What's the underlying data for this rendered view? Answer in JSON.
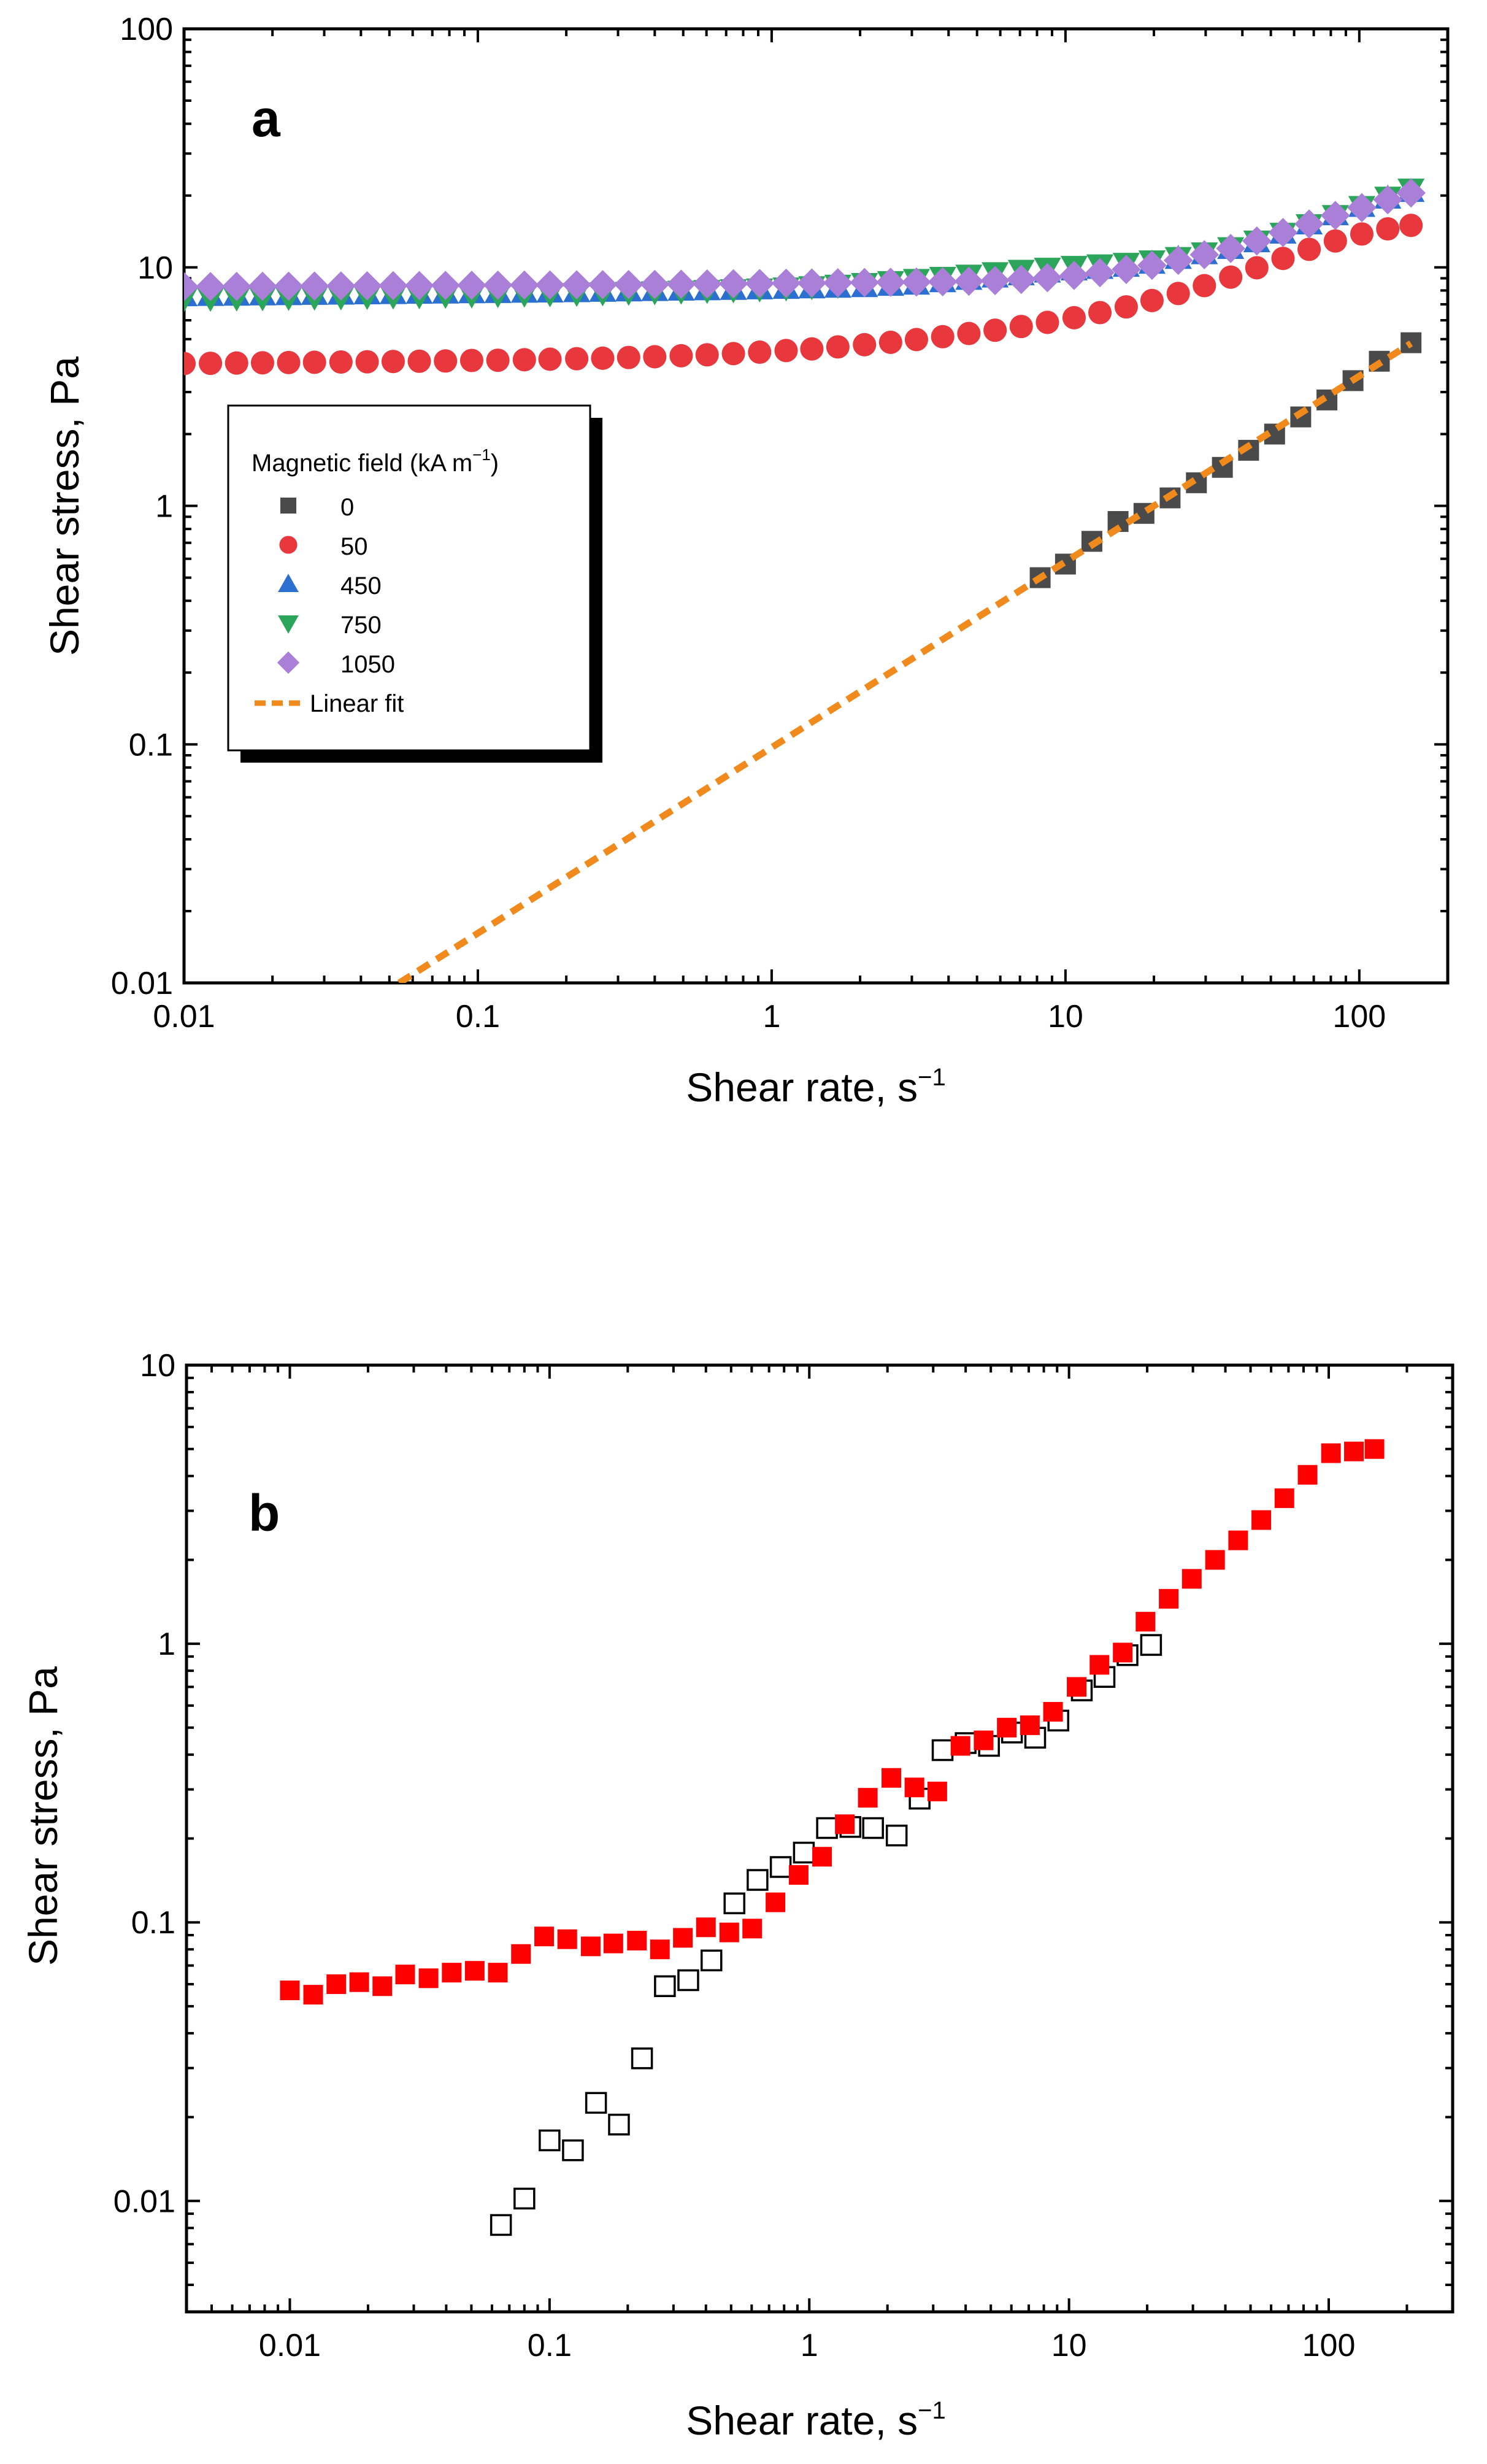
{
  "chart_data": [
    {
      "id": "a",
      "type": "scatter",
      "panel_label": "a",
      "xscale": "log",
      "yscale": "log",
      "xlim": [
        0.01,
        200
      ],
      "ylim": [
        0.01,
        100
      ],
      "xlabel": "Shear rate, s",
      "xlabel_sup": "−1",
      "ylabel": "Shear stress, Pa",
      "xticks": [
        0.01,
        0.1,
        1,
        10,
        100
      ],
      "xtick_labels": [
        "0.01",
        "0.1",
        "1",
        "10",
        "100"
      ],
      "yticks": [
        0.01,
        0.1,
        1,
        10,
        100
      ],
      "ytick_labels": [
        "0.01",
        "0.1",
        "1",
        "10",
        "100"
      ],
      "legend": {
        "title": "Magnetic field (kA m",
        "title_sup": "−1",
        "title_end": ")",
        "placement": "left-middle"
      },
      "series": [
        {
          "name": "0",
          "marker": "square",
          "color": "#4a4a4a",
          "x": [
            8.2,
            10,
            12.3,
            15.1,
            18.5,
            22.7,
            27.9,
            34.2,
            42,
            51.5,
            63.2,
            77.6,
            95.2,
            117,
            150
          ],
          "y": [
            0.5,
            0.57,
            0.71,
            0.86,
            0.93,
            1.08,
            1.25,
            1.45,
            1.71,
            2.0,
            2.36,
            2.78,
            3.35,
            4.04,
            4.83
          ]
        },
        {
          "name": "50",
          "marker": "circle",
          "color": "#e8383d",
          "x": [
            0.01,
            0.0123,
            0.0151,
            0.0185,
            0.0227,
            0.0278,
            0.0342,
            0.042,
            0.0515,
            0.0632,
            0.0776,
            0.0953,
            0.117,
            0.144,
            0.176,
            0.217,
            0.266,
            0.326,
            0.4,
            0.492,
            0.603,
            0.741,
            0.91,
            1.12,
            1.37,
            1.68,
            2.07,
            2.54,
            3.11,
            3.82,
            4.69,
            5.76,
            7.07,
            8.68,
            10.7,
            13.1,
            16.1,
            19.7,
            24.2,
            29.7,
            36.5,
            44.8,
            55,
            67.5,
            82.9,
            102,
            125,
            150
          ],
          "y": [
            3.95,
            3.96,
            3.97,
            3.98,
            3.99,
            4.0,
            4.01,
            4.02,
            4.03,
            4.04,
            4.05,
            4.07,
            4.08,
            4.1,
            4.12,
            4.14,
            4.16,
            4.19,
            4.22,
            4.26,
            4.3,
            4.35,
            4.41,
            4.48,
            4.55,
            4.64,
            4.74,
            4.85,
            4.98,
            5.12,
            5.28,
            5.45,
            5.65,
            5.88,
            6.15,
            6.46,
            6.83,
            7.26,
            7.77,
            8.38,
            9.1,
            9.96,
            10.9,
            11.9,
            12.9,
            13.8,
            14.5,
            15.0
          ]
        },
        {
          "name": "450",
          "marker": "triangle-up",
          "color": "#2b6fd1",
          "x": [
            0.01,
            0.0123,
            0.0151,
            0.0185,
            0.0227,
            0.0278,
            0.0342,
            0.042,
            0.0515,
            0.0632,
            0.0776,
            0.0953,
            0.117,
            0.144,
            0.176,
            0.217,
            0.266,
            0.326,
            0.4,
            0.492,
            0.603,
            0.741,
            0.91,
            1.12,
            1.37,
            1.68,
            2.07,
            2.54,
            3.11,
            3.82,
            4.69,
            5.76,
            7.07,
            8.68,
            10.7,
            13.1,
            16.1,
            19.7,
            24.2,
            29.7,
            36.5,
            44.8,
            55,
            67.5,
            82.9,
            102,
            125,
            150
          ],
          "y": [
            7.6,
            7.62,
            7.64,
            7.66,
            7.68,
            7.7,
            7.72,
            7.74,
            7.76,
            7.78,
            7.8,
            7.82,
            7.84,
            7.86,
            7.88,
            7.9,
            7.93,
            7.96,
            7.99,
            8.02,
            8.05,
            8.08,
            8.12,
            8.16,
            8.2,
            8.25,
            8.3,
            8.4,
            8.5,
            8.7,
            8.9,
            9.1,
            9.3,
            9.55,
            9.75,
            9.9,
            10.1,
            10.4,
            10.9,
            11.4,
            12.0,
            12.8,
            13.9,
            15.2,
            16.6,
            18.0,
            19.5,
            20.8
          ]
        },
        {
          "name": "750",
          "marker": "triangle-down",
          "color": "#2aa55a",
          "x": [
            0.01,
            0.0123,
            0.0151,
            0.0185,
            0.0227,
            0.0278,
            0.0342,
            0.042,
            0.0515,
            0.0632,
            0.0776,
            0.0953,
            0.117,
            0.144,
            0.176,
            0.217,
            0.266,
            0.326,
            0.4,
            0.492,
            0.603,
            0.741,
            0.91,
            1.12,
            1.37,
            1.68,
            2.07,
            2.54,
            3.11,
            3.82,
            4.69,
            5.76,
            7.07,
            8.68,
            10.7,
            13.1,
            16.1,
            19.7,
            24.2,
            29.7,
            36.5,
            44.8,
            55,
            67.5,
            82.9,
            102,
            125,
            150
          ],
          "y": [
            7.4,
            7.42,
            7.44,
            7.46,
            7.48,
            7.5,
            7.52,
            7.55,
            7.58,
            7.6,
            7.63,
            7.66,
            7.69,
            7.72,
            7.75,
            7.78,
            7.82,
            7.86,
            7.9,
            7.95,
            8.0,
            8.06,
            8.12,
            8.2,
            8.3,
            8.42,
            8.56,
            8.72,
            8.9,
            9.08,
            9.28,
            9.5,
            9.72,
            9.92,
            10.1,
            10.25,
            10.4,
            10.65,
            11.0,
            11.5,
            12.1,
            12.9,
            13.9,
            15.1,
            16.5,
            18.0,
            19.7,
            21.3
          ]
        },
        {
          "name": "1050",
          "marker": "diamond",
          "color": "#a97fd8",
          "x": [
            0.01,
            0.0123,
            0.0151,
            0.0185,
            0.0227,
            0.0278,
            0.0342,
            0.042,
            0.0515,
            0.0632,
            0.0776,
            0.0953,
            0.117,
            0.144,
            0.176,
            0.217,
            0.266,
            0.326,
            0.4,
            0.492,
            0.603,
            0.741,
            0.91,
            1.12,
            1.37,
            1.68,
            2.07,
            2.54,
            3.11,
            3.82,
            4.69,
            5.76,
            7.07,
            8.68,
            10.7,
            13.1,
            16.1,
            19.7,
            24.2,
            29.7,
            36.5,
            44.8,
            55,
            67.5,
            82.9,
            102,
            125,
            150
          ],
          "y": [
            8.3,
            8.31,
            8.32,
            8.33,
            8.34,
            8.35,
            8.36,
            8.37,
            8.38,
            8.39,
            8.4,
            8.41,
            8.42,
            8.43,
            8.44,
            8.45,
            8.46,
            8.47,
            8.48,
            8.5,
            8.52,
            8.54,
            8.56,
            8.58,
            8.6,
            8.62,
            8.64,
            8.66,
            8.68,
            8.7,
            8.74,
            8.8,
            8.9,
            9.05,
            9.25,
            9.5,
            9.8,
            10.2,
            10.7,
            11.3,
            12.0,
            12.9,
            14.0,
            15.2,
            16.5,
            17.8,
            19.2,
            20.5
          ]
        },
        {
          "name": "Linear fit",
          "marker": "dashed-line",
          "color": "#f08a1c",
          "x": [
            0.054,
            150
          ],
          "y": [
            0.01,
            4.8
          ]
        }
      ]
    },
    {
      "id": "b",
      "type": "scatter",
      "panel_label": "b",
      "xscale": "log",
      "yscale": "log",
      "xlim": [
        0.004,
        300
      ],
      "ylim": [
        0.004,
        10
      ],
      "xlabel": "Shear rate, s",
      "xlabel_sup": "−1",
      "ylabel": "Shear stress, Pa",
      "xticks": [
        0.01,
        0.1,
        1,
        10,
        100
      ],
      "xtick_labels": [
        "0.01",
        "0.1",
        "1",
        "10",
        "100"
      ],
      "yticks": [
        0.01,
        0.1,
        1,
        10
      ],
      "ytick_labels": [
        "0.01",
        "0.1",
        "1",
        "10"
      ],
      "series": [
        {
          "name": "open",
          "marker": "square-open",
          "color": "#000000",
          "x": [
            0.065,
            0.08,
            0.1,
            0.123,
            0.151,
            0.185,
            0.227,
            0.278,
            0.342,
            0.42,
            0.515,
            0.632,
            0.776,
            0.953,
            1.17,
            1.44,
            1.76,
            2.17,
            2.66,
            3.26,
            4.0,
            4.92,
            6.03,
            7.41,
            9.1,
            11.2,
            13.7,
            16.8,
            20.7
          ],
          "y": [
            0.0082,
            0.0102,
            0.0165,
            0.0152,
            0.0225,
            0.0188,
            0.0325,
            0.059,
            0.062,
            0.073,
            0.117,
            0.142,
            0.158,
            0.178,
            0.218,
            0.22,
            0.218,
            0.205,
            0.278,
            0.415,
            0.44,
            0.43,
            0.48,
            0.46,
            0.53,
            0.68,
            0.76,
            0.91,
            0.99
          ]
        },
        {
          "name": "filled",
          "marker": "square",
          "color": "#ff0000",
          "x": [
            0.01,
            0.0123,
            0.0151,
            0.0185,
            0.0227,
            0.0278,
            0.0342,
            0.042,
            0.0515,
            0.0632,
            0.0776,
            0.0953,
            0.117,
            0.144,
            0.176,
            0.217,
            0.266,
            0.326,
            0.4,
            0.492,
            0.603,
            0.741,
            0.91,
            1.12,
            1.37,
            1.68,
            2.07,
            2.54,
            3.11,
            3.82,
            4.69,
            5.76,
            7.07,
            8.68,
            10.7,
            13.1,
            16.1,
            19.7,
            24.2,
            29.7,
            36.5,
            44.8,
            55,
            67.5,
            82.9,
            102,
            125,
            150
          ],
          "y": [
            0.057,
            0.055,
            0.06,
            0.061,
            0.059,
            0.065,
            0.063,
            0.066,
            0.067,
            0.066,
            0.077,
            0.089,
            0.087,
            0.082,
            0.084,
            0.086,
            0.08,
            0.088,
            0.096,
            0.092,
            0.095,
            0.118,
            0.148,
            0.172,
            0.225,
            0.28,
            0.33,
            0.305,
            0.295,
            0.43,
            0.45,
            0.5,
            0.51,
            0.57,
            0.7,
            0.84,
            0.93,
            1.2,
            1.45,
            1.71,
            2.0,
            2.35,
            2.78,
            3.33,
            4.04,
            4.83,
            4.9,
            5.0
          ]
        }
      ]
    }
  ]
}
